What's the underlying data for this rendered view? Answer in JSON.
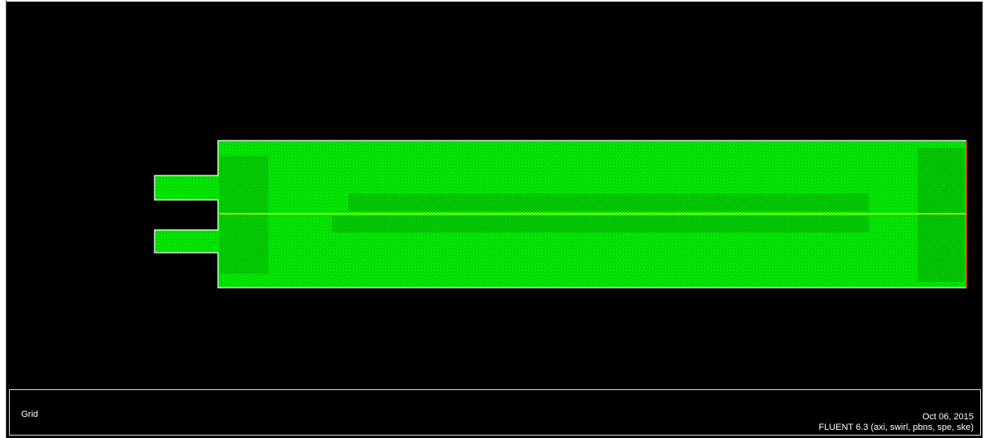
{
  "viewport": {
    "background_color": "#000000",
    "mesh_color": "#00ff00",
    "boundary_color": "#ffffff",
    "axis_color": "#ffff00",
    "outlet_color": "#ff3300"
  },
  "title_box": {
    "left_title": "Grid",
    "date": "Oct 06, 2015",
    "solver_info": "FLUENT 6.3 (axi, swirl, pbns, spe, ske)"
  }
}
